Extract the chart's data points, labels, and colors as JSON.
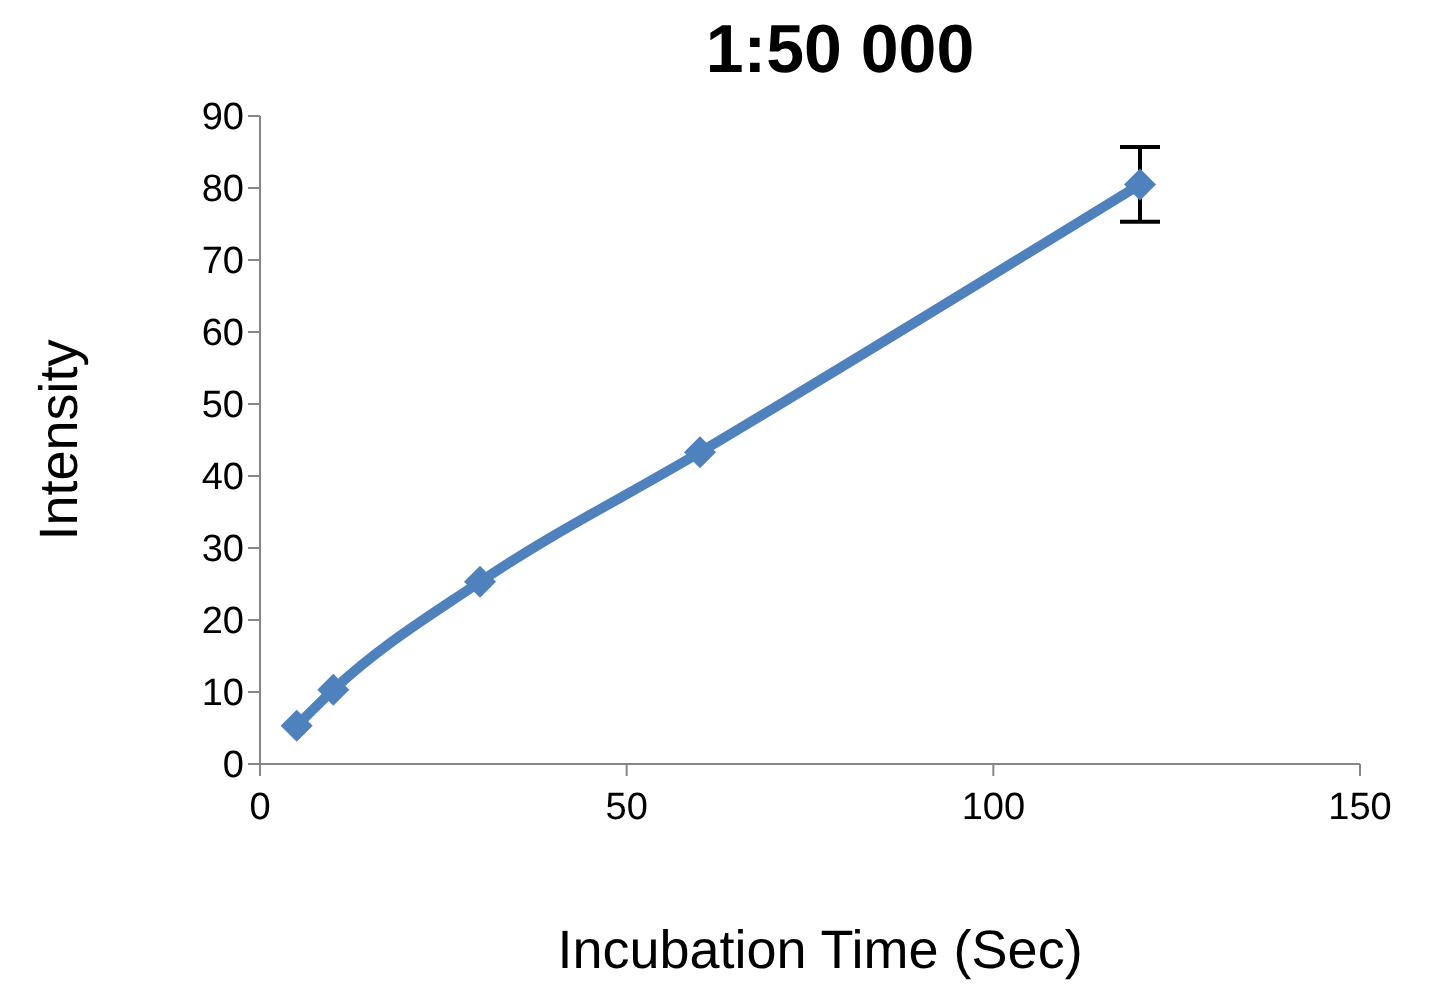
{
  "chart_data": {
    "type": "line",
    "title": "1:50 000",
    "xlabel": "Incubation Time (Sec)",
    "ylabel": "Intensity",
    "x": [
      5,
      10,
      30,
      60,
      120
    ],
    "series": [
      {
        "color": "#4f81bd",
        "values": [
          5.3,
          10.3,
          25.3,
          43.3,
          80.5
        ],
        "errors": [
          null,
          null,
          null,
          null,
          5.2
        ]
      }
    ],
    "xlim": [
      0,
      150
    ],
    "xticks": [
      0,
      50,
      100,
      150
    ],
    "ylim": [
      0,
      90
    ],
    "yticks": [
      0,
      10,
      20,
      30,
      40,
      50,
      60,
      70,
      80,
      90
    ],
    "grid": false,
    "legend": false,
    "marker": "diamond",
    "line_style": "solid"
  }
}
